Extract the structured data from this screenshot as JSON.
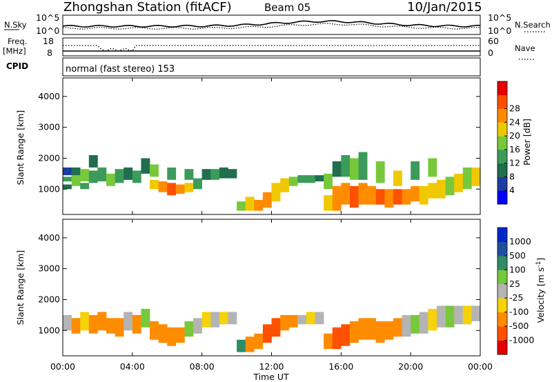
{
  "header": {
    "station": "Zhongshan Station (fitACF)",
    "beam": "Beam 05",
    "date": "10/Jan/2015"
  },
  "noise_panel": {
    "left_label": "N.Sky",
    "left_ticks": [
      "10^5",
      "10^0"
    ],
    "right_ticks": [
      "10^5",
      "10^0"
    ],
    "right_label": "N.Search"
  },
  "freq_panel": {
    "left_label_line1": "Freq.",
    "left_label_line2": "[MHz]",
    "left_ticks": [
      "18",
      "8"
    ],
    "right_ticks": [
      "60",
      "0"
    ],
    "right_label": "Nave"
  },
  "cpid_panel": {
    "label": "CPID",
    "mode_text": "normal (fast stereo) 153"
  },
  "x_axis": {
    "ticks": [
      "00:00",
      "04:00",
      "08:00",
      "12:00",
      "16:00",
      "20:00",
      "00:00"
    ],
    "label": "Time UT"
  },
  "colors": {
    "power_scale": [
      "#0000ff",
      "#1e3ca0",
      "#1f6e4e",
      "#3c9b5a",
      "#78c83c",
      "#f0c800",
      "#ff8c00",
      "#ff5000",
      "#e60000"
    ],
    "velocity_scale": [
      "#e60000",
      "#ff5000",
      "#ff8c00",
      "#f5d20a",
      "#b4b4b4",
      "#78c83c",
      "#2f8c64",
      "#1e50a0",
      "#0028c8"
    ]
  },
  "chart_data": [
    {
      "type": "heatmap",
      "title": "",
      "xlabel": "",
      "ylabel": "Slant Range [km]",
      "x_ticks": [
        "00:00",
        "04:00",
        "08:00",
        "12:00",
        "16:00",
        "20:00",
        "00:00"
      ],
      "y_ticks": [
        1000,
        2000,
        3000,
        4000
      ],
      "ylim": [
        180,
        4600
      ],
      "colorbar": {
        "label": "Power [dB]",
        "ticks": [
          4,
          8,
          12,
          16,
          20,
          24,
          28
        ]
      },
      "cells": [
        {
          "t": 0.0,
          "r0": 1000,
          "r1": 1150,
          "v": 8
        },
        {
          "t": 0.0,
          "r0": 1250,
          "r1": 1400,
          "v": 12
        },
        {
          "t": 0.0,
          "r0": 1450,
          "r1": 1700,
          "v": 4
        },
        {
          "t": 0.5,
          "r0": 1100,
          "r1": 1450,
          "v": 16
        },
        {
          "t": 0.5,
          "r0": 1450,
          "r1": 1700,
          "v": 8
        },
        {
          "t": 1.0,
          "r0": 1000,
          "r1": 1200,
          "v": 12
        },
        {
          "t": 1.0,
          "r0": 1250,
          "r1": 1650,
          "v": 16
        },
        {
          "t": 1.5,
          "r0": 1200,
          "r1": 1600,
          "v": 12
        },
        {
          "t": 1.5,
          "r0": 1700,
          "r1": 2100,
          "v": 8
        },
        {
          "t": 2.0,
          "r0": 1250,
          "r1": 1700,
          "v": 12
        },
        {
          "t": 2.5,
          "r0": 1100,
          "r1": 1500,
          "v": 16
        },
        {
          "t": 3.0,
          "r0": 1200,
          "r1": 1650,
          "v": 12
        },
        {
          "t": 3.5,
          "r0": 1300,
          "r1": 1700,
          "v": 8
        },
        {
          "t": 4.0,
          "r0": 1200,
          "r1": 1600,
          "v": 12
        },
        {
          "t": 4.5,
          "r0": 1500,
          "r1": 2000,
          "v": 8
        },
        {
          "t": 5.0,
          "r0": 1000,
          "r1": 1300,
          "v": 20
        },
        {
          "t": 5.0,
          "r0": 1400,
          "r1": 1800,
          "v": 16
        },
        {
          "t": 5.5,
          "r0": 900,
          "r1": 1250,
          "v": 24
        },
        {
          "t": 6.0,
          "r0": 800,
          "r1": 1200,
          "v": 28
        },
        {
          "t": 6.0,
          "r0": 1300,
          "r1": 1700,
          "v": 12
        },
        {
          "t": 6.5,
          "r0": 850,
          "r1": 1150,
          "v": 24
        },
        {
          "t": 7.0,
          "r0": 900,
          "r1": 1200,
          "v": 20
        },
        {
          "t": 7.0,
          "r0": 1300,
          "r1": 1650,
          "v": 12
        },
        {
          "t": 7.5,
          "r0": 1000,
          "r1": 1350,
          "v": 12
        },
        {
          "t": 8.0,
          "r0": 1300,
          "r1": 1650,
          "v": 8
        },
        {
          "t": 8.5,
          "r0": 1300,
          "r1": 1650,
          "v": 12
        },
        {
          "t": 9.0,
          "r0": 1350,
          "r1": 1700,
          "v": 8
        },
        {
          "t": 9.5,
          "r0": 1350,
          "r1": 1650,
          "v": 8
        },
        {
          "t": 10.0,
          "r0": 300,
          "r1": 600,
          "v": 16
        },
        {
          "t": 10.5,
          "r0": 300,
          "r1": 750,
          "v": 20
        },
        {
          "t": 11.0,
          "r0": 300,
          "r1": 650,
          "v": 24
        },
        {
          "t": 11.5,
          "r0": 400,
          "r1": 900,
          "v": 24
        },
        {
          "t": 12.0,
          "r0": 600,
          "r1": 1200,
          "v": 20
        },
        {
          "t": 12.5,
          "r0": 900,
          "r1": 1350,
          "v": 20
        },
        {
          "t": 13.0,
          "r0": 1100,
          "r1": 1400,
          "v": 16
        },
        {
          "t": 13.5,
          "r0": 1200,
          "r1": 1450,
          "v": 12
        },
        {
          "t": 14.0,
          "r0": 1200,
          "r1": 1450,
          "v": 12
        },
        {
          "t": 14.5,
          "r0": 1250,
          "r1": 1450,
          "v": 8
        },
        {
          "t": 15.0,
          "r0": 300,
          "r1": 800,
          "v": 20
        },
        {
          "t": 15.0,
          "r0": 1000,
          "r1": 1500,
          "v": 16
        },
        {
          "t": 15.5,
          "r0": 300,
          "r1": 1100,
          "v": 24
        },
        {
          "t": 15.5,
          "r0": 1400,
          "r1": 1900,
          "v": 8
        },
        {
          "t": 16.0,
          "r0": 500,
          "r1": 1200,
          "v": 24
        },
        {
          "t": 16.0,
          "r0": 1400,
          "r1": 2100,
          "v": 12
        },
        {
          "t": 16.5,
          "r0": 400,
          "r1": 1100,
          "v": 28
        },
        {
          "t": 16.5,
          "r0": 1300,
          "r1": 2000,
          "v": 16
        },
        {
          "t": 17.0,
          "r0": 500,
          "r1": 1200,
          "v": 24
        },
        {
          "t": 17.0,
          "r0": 1300,
          "r1": 2200,
          "v": 12
        },
        {
          "t": 17.5,
          "r0": 500,
          "r1": 1100,
          "v": 24
        },
        {
          "t": 18.0,
          "r0": 500,
          "r1": 1000,
          "v": 28
        },
        {
          "t": 18.0,
          "r0": 1200,
          "r1": 1900,
          "v": 16
        },
        {
          "t": 18.5,
          "r0": 400,
          "r1": 1000,
          "v": 24
        },
        {
          "t": 19.0,
          "r0": 500,
          "r1": 1000,
          "v": 28
        },
        {
          "t": 19.0,
          "r0": 1100,
          "r1": 1600,
          "v": 20
        },
        {
          "t": 19.5,
          "r0": 500,
          "r1": 1000,
          "v": 24
        },
        {
          "t": 20.0,
          "r0": 600,
          "r1": 1100,
          "v": 24
        },
        {
          "t": 20.0,
          "r0": 1300,
          "r1": 1900,
          "v": 12
        },
        {
          "t": 20.5,
          "r0": 500,
          "r1": 1100,
          "v": 20
        },
        {
          "t": 21.0,
          "r0": 700,
          "r1": 1200,
          "v": 20
        },
        {
          "t": 21.0,
          "r0": 1400,
          "r1": 2000,
          "v": 16
        },
        {
          "t": 21.5,
          "r0": 700,
          "r1": 1300,
          "v": 20
        },
        {
          "t": 22.0,
          "r0": 800,
          "r1": 1400,
          "v": 16
        },
        {
          "t": 22.5,
          "r0": 900,
          "r1": 1500,
          "v": 20
        },
        {
          "t": 23.0,
          "r0": 1000,
          "r1": 1700,
          "v": 16
        },
        {
          "t": 23.5,
          "r0": 1100,
          "r1": 1700,
          "v": 20
        }
      ]
    },
    {
      "type": "heatmap",
      "title": "",
      "xlabel": "Time UT",
      "ylabel": "Slant Range [km]",
      "x_ticks": [
        "00:00",
        "04:00",
        "08:00",
        "12:00",
        "16:00",
        "20:00",
        "00:00"
      ],
      "y_ticks": [
        1000,
        2000,
        3000,
        4000
      ],
      "ylim": [
        180,
        4600
      ],
      "colorbar": {
        "label": "Velocity [m s-1]",
        "ticks": [
          1000,
          500,
          100,
          25,
          -25,
          -100,
          -500,
          -1000
        ]
      },
      "cells": [
        {
          "t": 0.0,
          "r0": 1000,
          "r1": 1500,
          "v": 0
        },
        {
          "t": 0.5,
          "r0": 900,
          "r1": 1400,
          "v": -100
        },
        {
          "t": 1.0,
          "r0": 1000,
          "r1": 1600,
          "v": -50
        },
        {
          "t": 1.5,
          "r0": 900,
          "r1": 1500,
          "v": -150
        },
        {
          "t": 2.0,
          "r0": 1000,
          "r1": 1600,
          "v": -100
        },
        {
          "t": 2.5,
          "r0": 900,
          "r1": 1400,
          "v": -200
        },
        {
          "t": 3.0,
          "r0": 800,
          "r1": 1400,
          "v": -150
        },
        {
          "t": 3.5,
          "r0": 1000,
          "r1": 1600,
          "v": 0
        },
        {
          "t": 4.0,
          "r0": 900,
          "r1": 1500,
          "v": -100
        },
        {
          "t": 4.5,
          "r0": 1100,
          "r1": 1700,
          "v": 50
        },
        {
          "t": 5.0,
          "r0": 700,
          "r1": 1300,
          "v": -200
        },
        {
          "t": 5.5,
          "r0": 600,
          "r1": 1200,
          "v": -150
        },
        {
          "t": 6.0,
          "r0": 500,
          "r1": 1100,
          "v": -300
        },
        {
          "t": 6.5,
          "r0": 600,
          "r1": 1100,
          "v": -100
        },
        {
          "t": 7.0,
          "r0": 800,
          "r1": 1300,
          "v": 50
        },
        {
          "t": 7.5,
          "r0": 900,
          "r1": 1400,
          "v": 0
        },
        {
          "t": 8.0,
          "r0": 1100,
          "r1": 1600,
          "v": -50
        },
        {
          "t": 8.5,
          "r0": 1100,
          "r1": 1600,
          "v": 0
        },
        {
          "t": 9.0,
          "r0": 1200,
          "r1": 1600,
          "v": -50
        },
        {
          "t": 9.5,
          "r0": 1200,
          "r1": 1600,
          "v": 0
        },
        {
          "t": 10.0,
          "r0": 300,
          "r1": 700,
          "v": 300
        },
        {
          "t": 10.5,
          "r0": 300,
          "r1": 800,
          "v": -300
        },
        {
          "t": 11.0,
          "r0": 400,
          "r1": 900,
          "v": -400
        },
        {
          "t": 11.5,
          "r0": 600,
          "r1": 1200,
          "v": -600
        },
        {
          "t": 12.0,
          "r0": 800,
          "r1": 1400,
          "v": -500
        },
        {
          "t": 12.5,
          "r0": 1000,
          "r1": 1500,
          "v": -200
        },
        {
          "t": 13.0,
          "r0": 1100,
          "r1": 1500,
          "v": -100
        },
        {
          "t": 13.5,
          "r0": 1200,
          "r1": 1500,
          "v": 0
        },
        {
          "t": 14.0,
          "r0": 1200,
          "r1": 1600,
          "v": -50
        },
        {
          "t": 14.5,
          "r0": 1200,
          "r1": 1600,
          "v": 0
        },
        {
          "t": 15.0,
          "r0": 400,
          "r1": 900,
          "v": -400
        },
        {
          "t": 15.5,
          "r0": 400,
          "r1": 1100,
          "v": -500
        },
        {
          "t": 16.0,
          "r0": 500,
          "r1": 1200,
          "v": -600
        },
        {
          "t": 16.5,
          "r0": 600,
          "r1": 1300,
          "v": -400
        },
        {
          "t": 17.0,
          "r0": 700,
          "r1": 1400,
          "v": -300
        },
        {
          "t": 17.5,
          "r0": 700,
          "r1": 1400,
          "v": -200
        },
        {
          "t": 18.0,
          "r0": 600,
          "r1": 1300,
          "v": -300
        },
        {
          "t": 18.5,
          "r0": 700,
          "r1": 1300,
          "v": -100
        },
        {
          "t": 19.0,
          "r0": 800,
          "r1": 1400,
          "v": -200
        },
        {
          "t": 19.5,
          "r0": 800,
          "r1": 1500,
          "v": 0
        },
        {
          "t": 20.0,
          "r0": 900,
          "r1": 1500,
          "v": 50
        },
        {
          "t": 20.5,
          "r0": 900,
          "r1": 1600,
          "v": 0
        },
        {
          "t": 21.0,
          "r0": 1000,
          "r1": 1700,
          "v": -50
        },
        {
          "t": 21.5,
          "r0": 1100,
          "r1": 1800,
          "v": 0
        },
        {
          "t": 22.0,
          "r0": 1100,
          "r1": 1800,
          "v": 50
        },
        {
          "t": 22.5,
          "r0": 1200,
          "r1": 1800,
          "v": 0
        },
        {
          "t": 23.0,
          "r0": 1200,
          "r1": 1800,
          "v": -50
        },
        {
          "t": 23.5,
          "r0": 1300,
          "r1": 1800,
          "v": 0
        }
      ]
    }
  ]
}
